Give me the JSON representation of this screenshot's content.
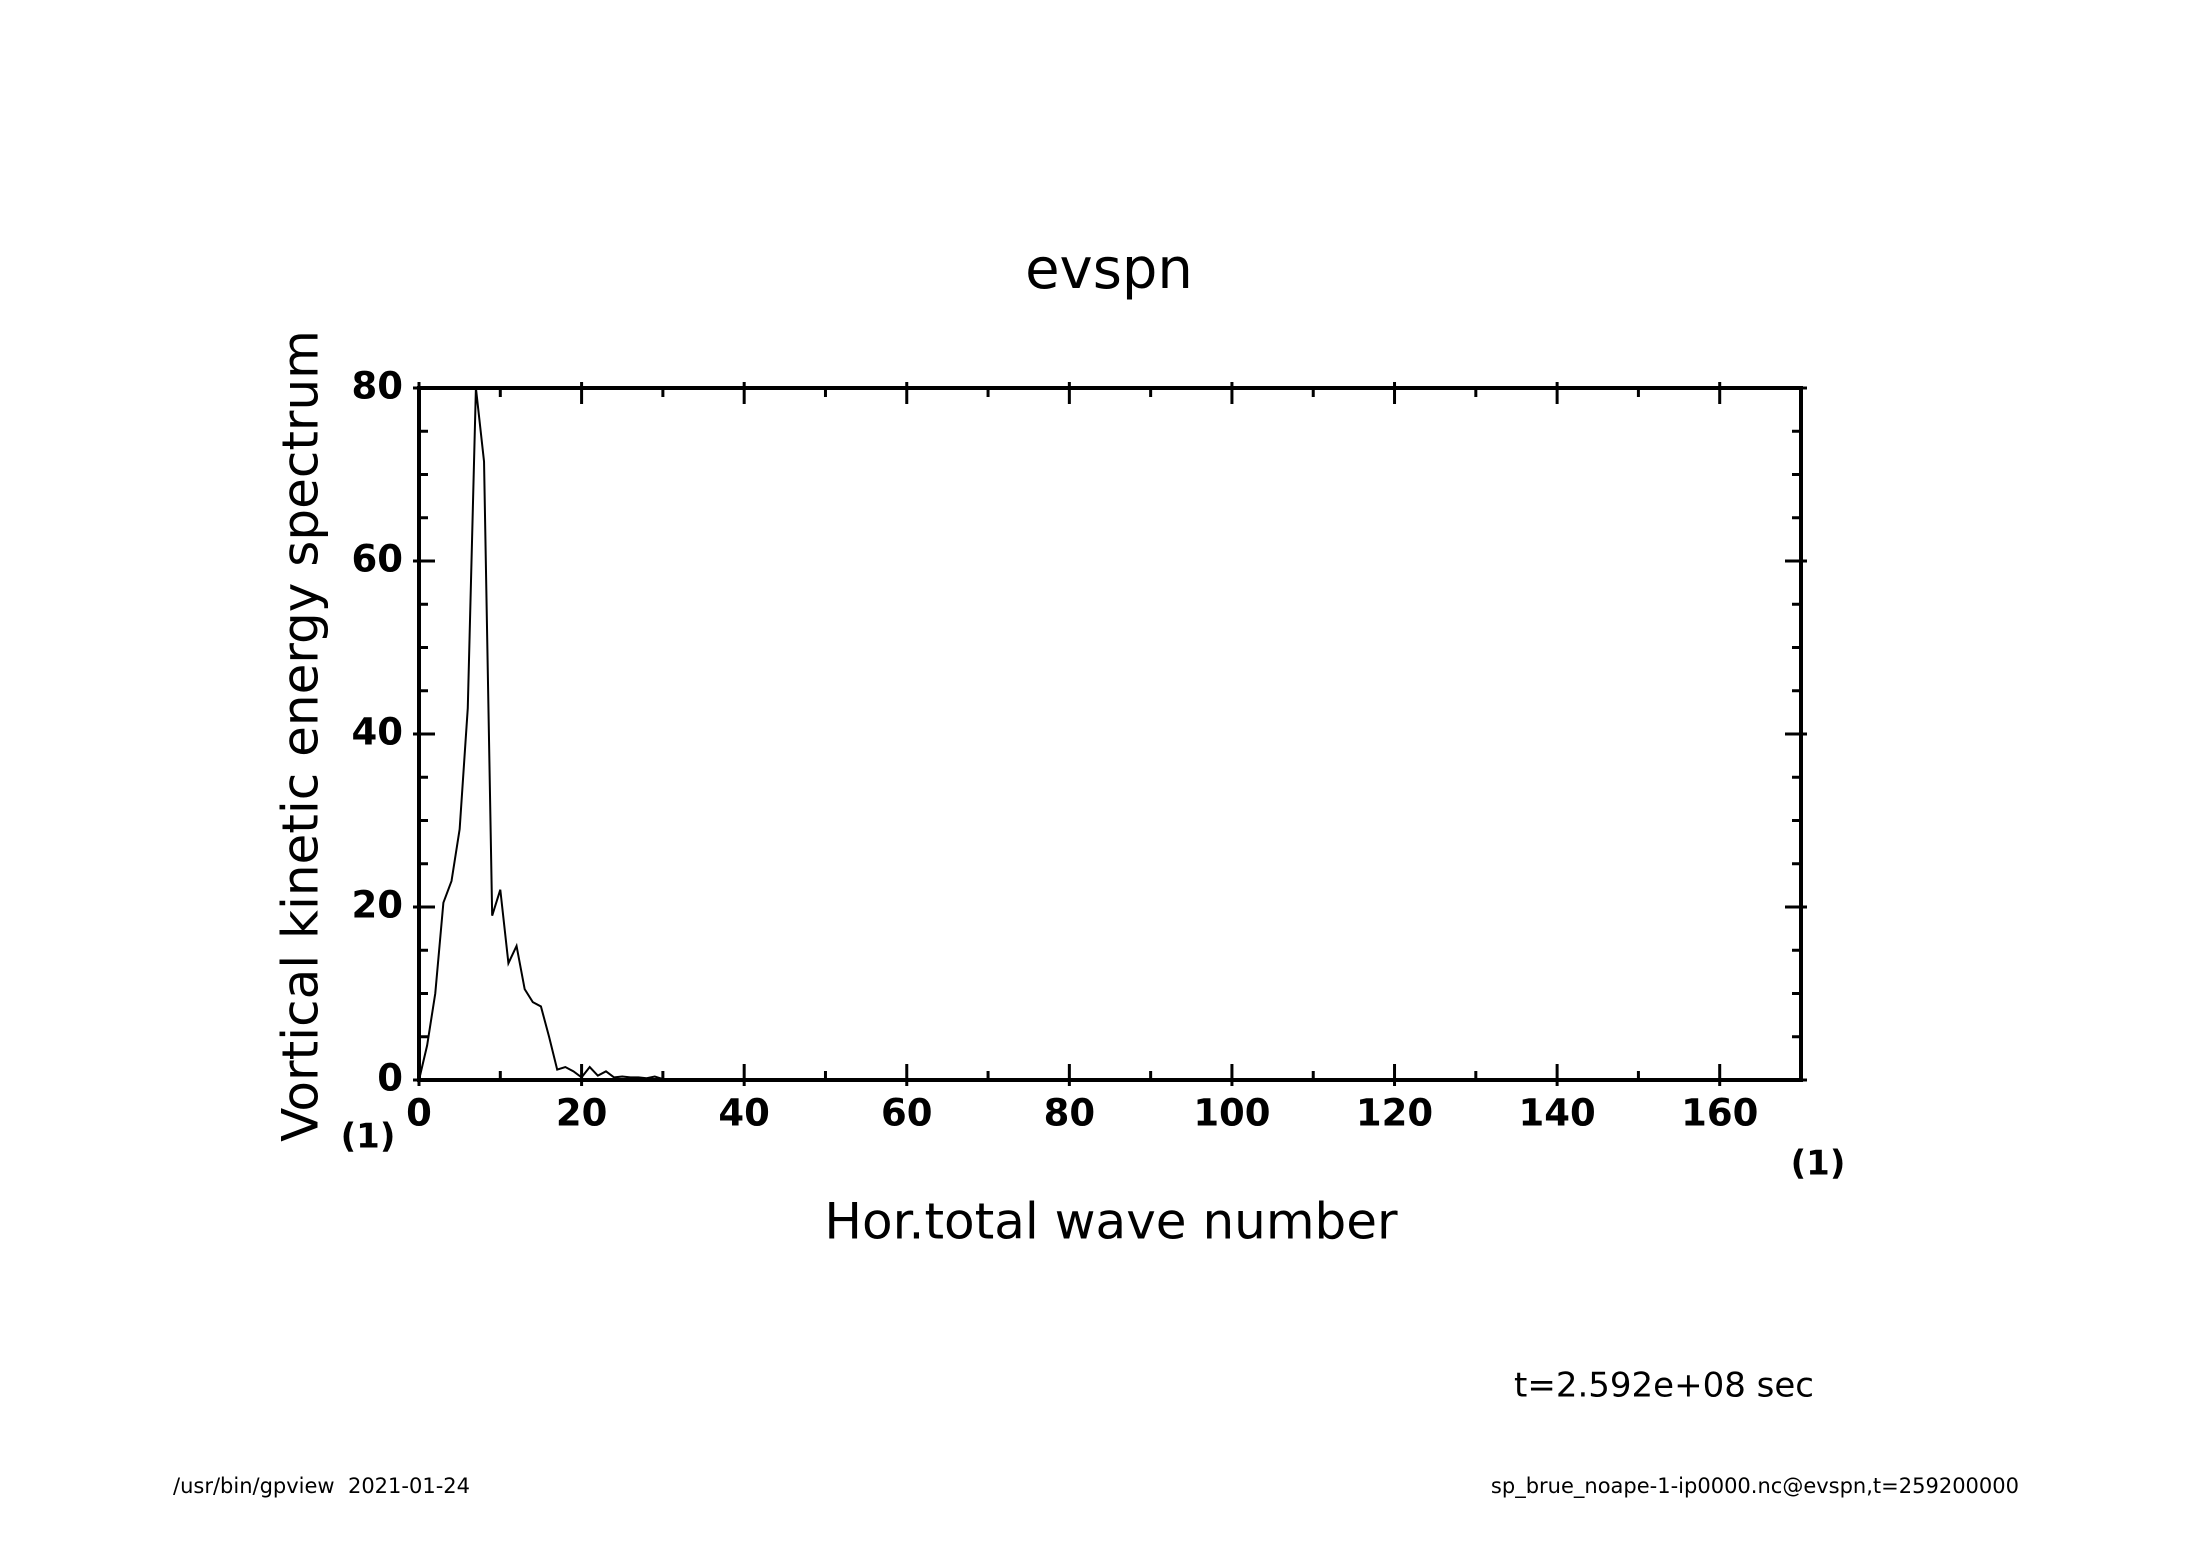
{
  "chart_data": {
    "type": "line",
    "title": "evspn",
    "y_label": "Vortical kinetic energy spectrum",
    "x_label": "Hor.total wave number",
    "x_unit": "(1)",
    "y_unit": "(1)",
    "annotation": "t=2.592e+08 sec",
    "footer_left": "/usr/bin/gpview  2021-01-24",
    "footer_right": "sp_brue_noape-1-ip0000.nc@evspn,t=259200000",
    "x": [
      0,
      1,
      2,
      3,
      4,
      5,
      6,
      7,
      8,
      9,
      10,
      11,
      12,
      13,
      14,
      15,
      16,
      17,
      18,
      19,
      20,
      21,
      22,
      23,
      24,
      25,
      26,
      27,
      28,
      29,
      30,
      31,
      32,
      33,
      34,
      35,
      36,
      37,
      38,
      39,
      40
    ],
    "series": [
      {
        "color": "#000000",
        "values": [
          0,
          4,
          10,
          20.5,
          23,
          29,
          43,
          80,
          71.5,
          19,
          22,
          13.5,
          15.5,
          10.5,
          9,
          8.5,
          5,
          1.2,
          1.5,
          1,
          0.3,
          1.5,
          0.5,
          1,
          0.3,
          0.4,
          0.3,
          0.3,
          0.2,
          0.4,
          0.1,
          0.1,
          0.1,
          0.05,
          0.05,
          0,
          0,
          0,
          0,
          0,
          0
        ]
      }
    ],
    "xlim": [
      0,
      170
    ],
    "xticks": [
      0,
      20,
      40,
      60,
      80,
      100,
      120,
      140,
      160
    ],
    "ylim": [
      0,
      80
    ],
    "yticks": [
      0,
      20,
      40,
      60,
      80
    ],
    "grid": false
  }
}
